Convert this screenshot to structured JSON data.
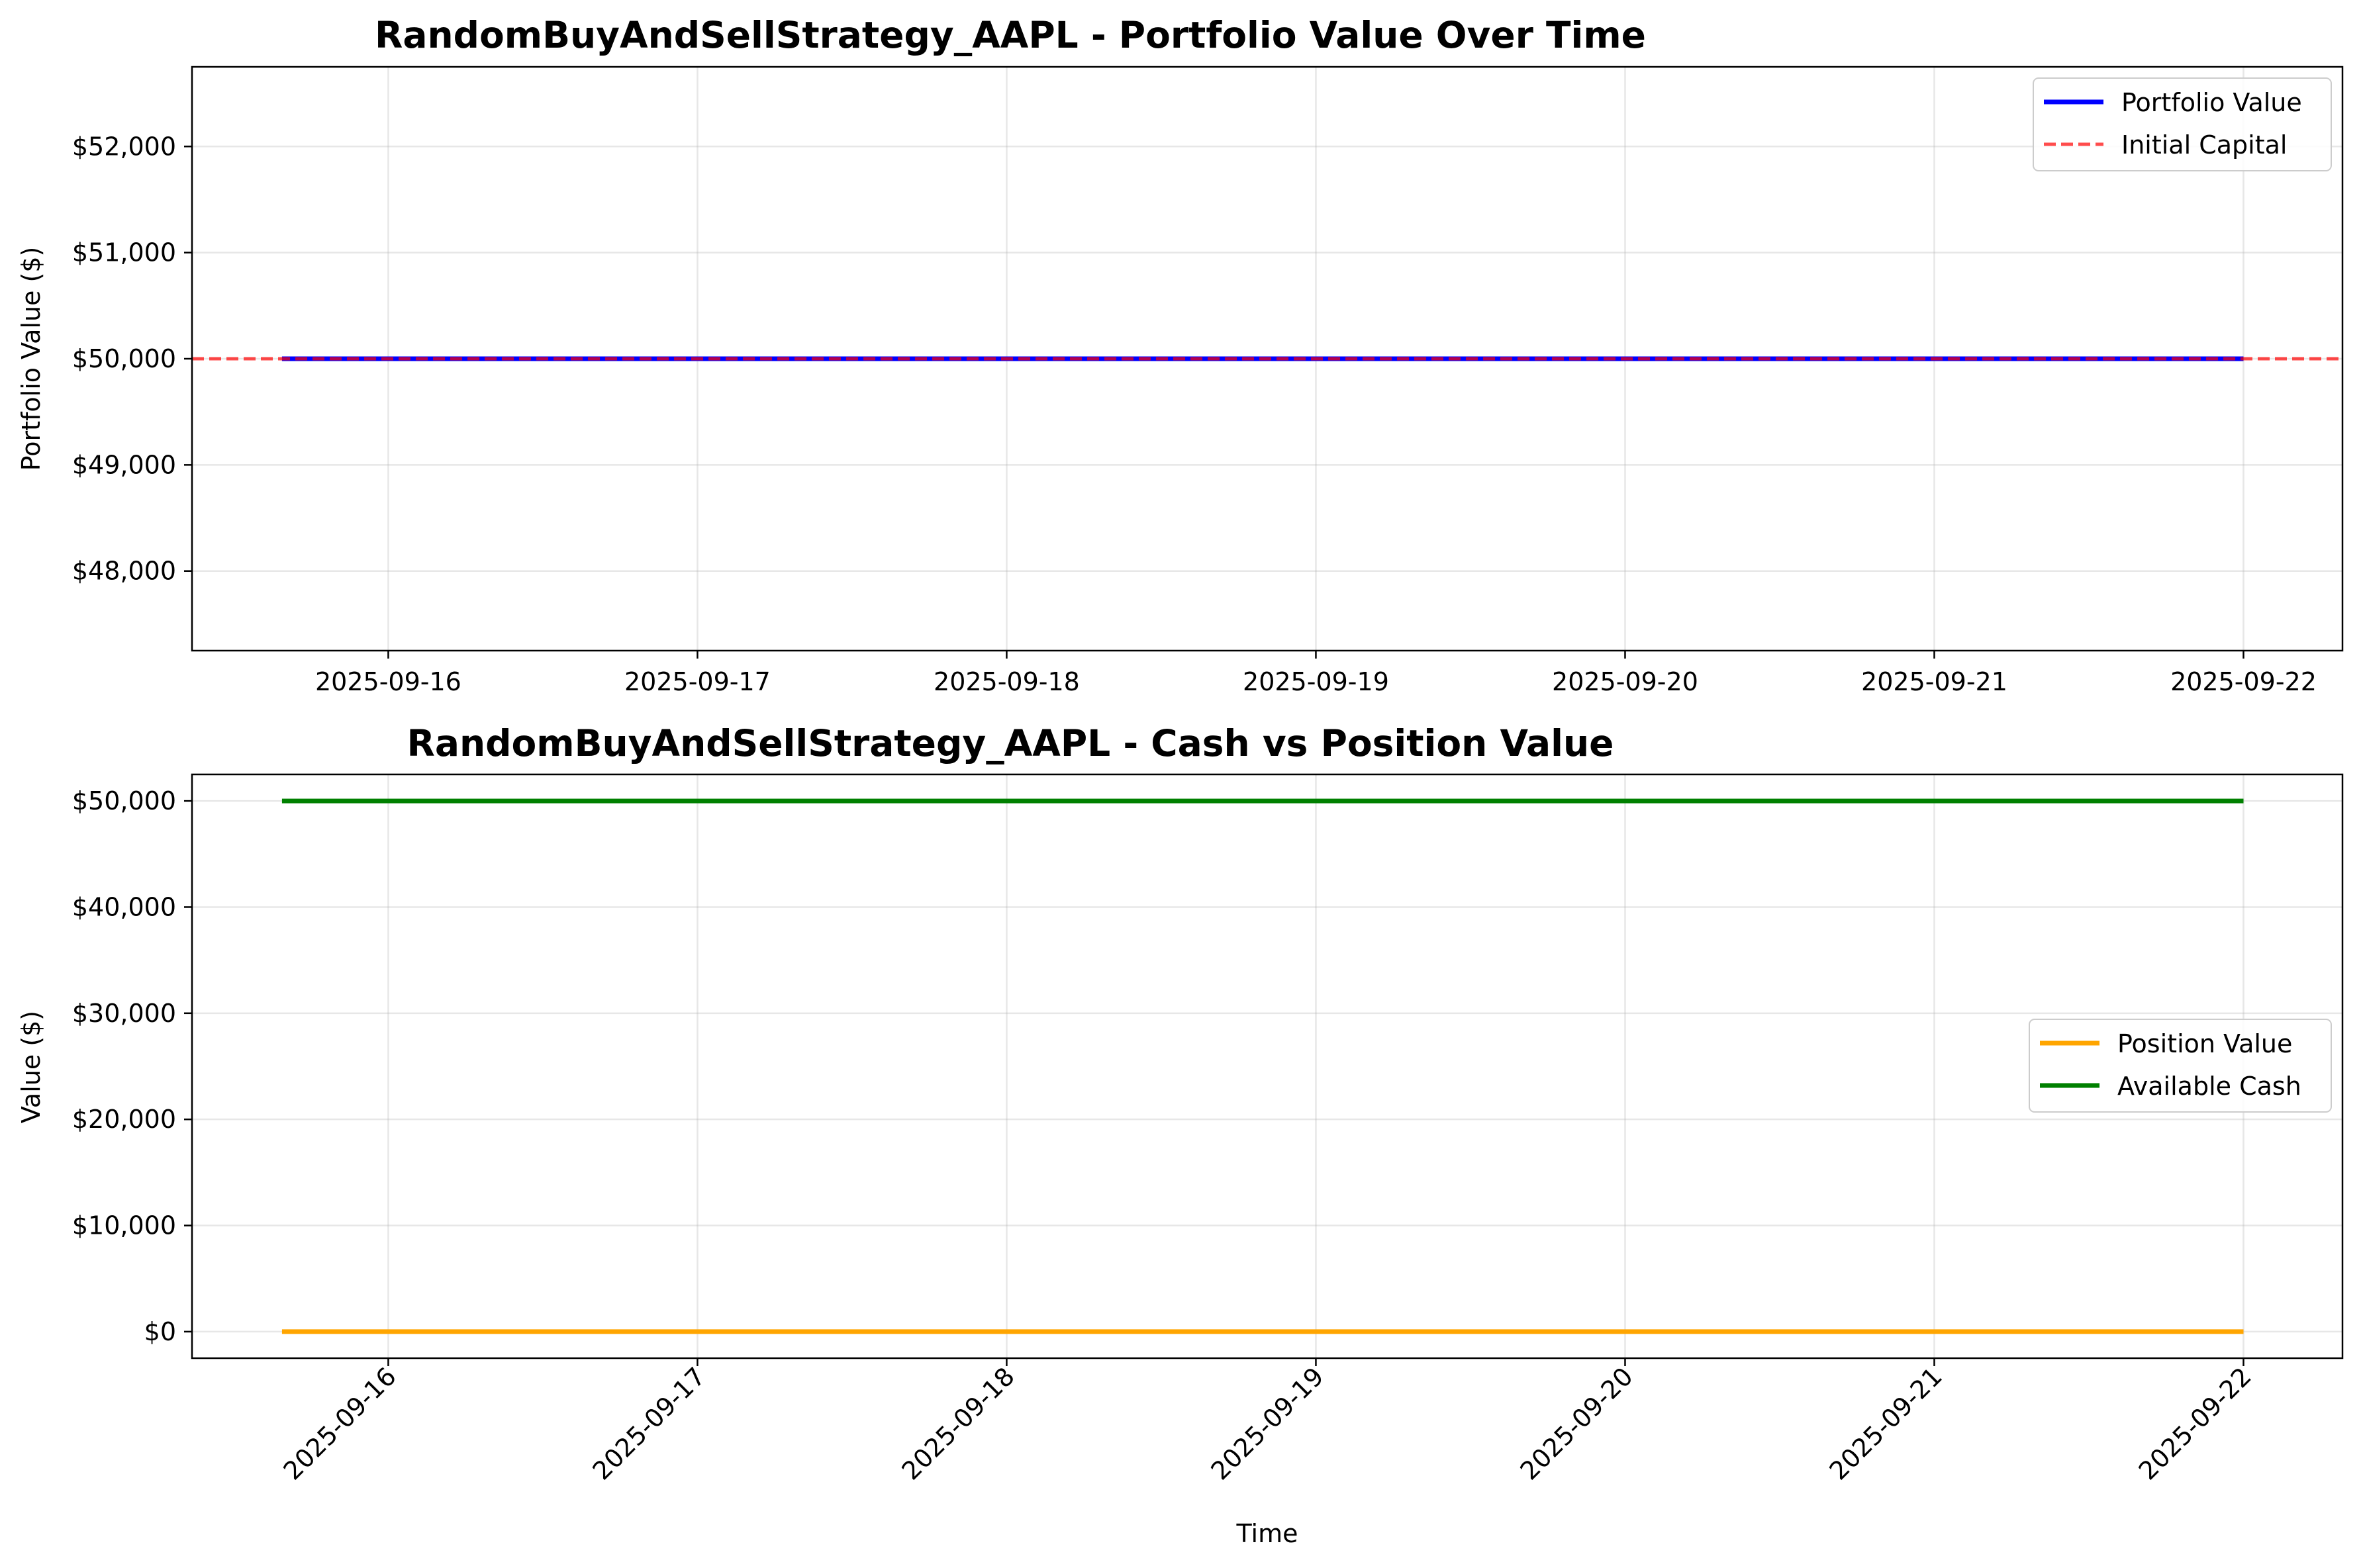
{
  "chart_data": [
    {
      "type": "line",
      "title": "RandomBuyAndSellStrategy_AAPL - Portfolio Value Over Time",
      "xlabel": "",
      "ylabel": "Portfolio Value ($)",
      "xlim": [
        "2025-09-15 08:46",
        "2025-09-22 07:41"
      ],
      "ylim": [
        47250,
        52750
      ],
      "x_ticks": [
        "2025-09-16",
        "2025-09-17",
        "2025-09-18",
        "2025-09-19",
        "2025-09-20",
        "2025-09-21",
        "2025-09-22"
      ],
      "y_ticks": [
        {
          "value": 48000,
          "label": "$48,000"
        },
        {
          "value": 49000,
          "label": "$49,000"
        },
        {
          "value": 50000,
          "label": "$50,000"
        },
        {
          "value": 51000,
          "label": "$51,000"
        },
        {
          "value": 52000,
          "label": "$52,000"
        }
      ],
      "grid": true,
      "legend_position": "upper right",
      "series": [
        {
          "name": "Portfolio Value",
          "color": "#0000ff",
          "style": "solid",
          "x": [
            "2025-09-15 15:45",
            "2025-09-22 00:00"
          ],
          "y": [
            50000,
            50000
          ]
        }
      ],
      "reference_lines": [
        {
          "name": "Initial Capital",
          "color": "#ff0000",
          "style": "dashed",
          "y": 50000
        }
      ]
    },
    {
      "type": "line",
      "title": "RandomBuyAndSellStrategy_AAPL - Cash vs Position Value",
      "xlabel": "Time",
      "ylabel": "Value ($)",
      "xlim": [
        "2025-09-15 08:46",
        "2025-09-22 07:41"
      ],
      "ylim": [
        -2500,
        52500
      ],
      "x_ticks": [
        "2025-09-16",
        "2025-09-17",
        "2025-09-18",
        "2025-09-19",
        "2025-09-20",
        "2025-09-21",
        "2025-09-22"
      ],
      "x_tick_rotation": 45,
      "y_ticks": [
        {
          "value": 0,
          "label": "$0"
        },
        {
          "value": 10000,
          "label": "$10,000"
        },
        {
          "value": 20000,
          "label": "$20,000"
        },
        {
          "value": 30000,
          "label": "$30,000"
        },
        {
          "value": 40000,
          "label": "$40,000"
        },
        {
          "value": 50000,
          "label": "$50,000"
        }
      ],
      "grid": true,
      "legend_position": "center right",
      "series": [
        {
          "name": "Position Value",
          "color": "#ffa500",
          "style": "solid",
          "x": [
            "2025-09-15 15:45",
            "2025-09-22 00:00"
          ],
          "y": [
            0,
            0
          ]
        },
        {
          "name": "Available Cash",
          "color": "#008000",
          "style": "solid",
          "x": [
            "2025-09-15 15:45",
            "2025-09-22 00:00"
          ],
          "y": [
            50000,
            50000
          ]
        }
      ]
    }
  ]
}
